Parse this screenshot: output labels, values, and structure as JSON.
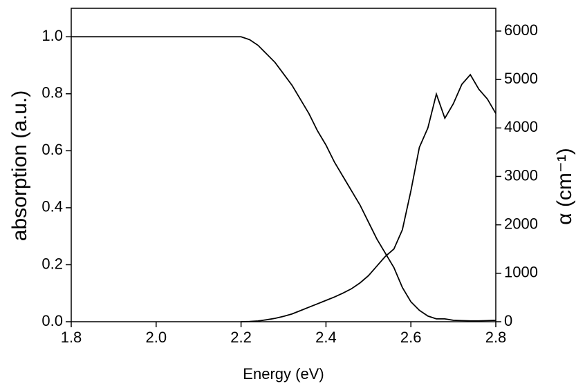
{
  "chart_data": {
    "type": "line",
    "x_label": "Energy (eV)",
    "y_label": "absorption (a.u.)",
    "y2_label": "α (cm⁻¹)",
    "xlim": [
      1.8,
      2.8
    ],
    "xticks": [
      1.8,
      {
        "value": 2,
        "label": "2.0"
      },
      2.2,
      2.4,
      2.6,
      2.8
    ],
    "ylim": [
      0,
      1.1
    ],
    "yticks": [
      {
        "value": 0,
        "label": "0.0"
      },
      0.2,
      0.4,
      0.6,
      0.8,
      {
        "value": 1,
        "label": "1.0"
      }
    ],
    "y2lim": [
      0,
      6470
    ],
    "y2ticks": [
      0,
      1000,
      2000,
      3000,
      4000,
      5000,
      6000
    ],
    "grid": false,
    "series": [
      {
        "color": "#000000",
        "x": [
          1.8,
          2.2,
          2.22,
          2.24,
          2.26,
          2.28,
          2.3,
          2.32,
          2.34,
          2.36,
          2.38,
          2.4,
          2.42,
          2.44,
          2.46,
          2.48,
          2.5,
          2.52,
          2.54,
          2.56,
          2.58,
          2.6,
          2.62,
          2.64,
          2.66,
          2.68,
          2.7,
          2.72,
          2.74,
          2.76,
          2.78,
          2.8
        ],
        "values": [
          1.0,
          1.0,
          0.99,
          0.97,
          0.94,
          0.91,
          0.87,
          0.83,
          0.78,
          0.73,
          0.67,
          0.62,
          0.56,
          0.51,
          0.46,
          0.41,
          0.35,
          0.29,
          0.24,
          0.19,
          0.12,
          0.07,
          0.04,
          0.02,
          0.01,
          0.01,
          0.005,
          0.004,
          0.003,
          0.003,
          0.004,
          0.005
        ]
      },
      {
        "color": "#000000",
        "axis": "y2",
        "x": [
          1.8,
          2.2,
          2.22,
          2.24,
          2.26,
          2.28,
          2.3,
          2.32,
          2.34,
          2.36,
          2.38,
          2.4,
          2.42,
          2.44,
          2.46,
          2.48,
          2.5,
          2.52,
          2.54,
          2.56,
          2.58,
          2.6,
          2.62,
          2.64,
          2.66,
          2.68,
          2.7,
          2.72,
          2.74,
          2.76,
          2.78,
          2.8
        ],
        "values": [
          null,
          0,
          5,
          15,
          40,
          70,
          110,
          160,
          230,
          300,
          370,
          440,
          510,
          590,
          680,
          800,
          950,
          1150,
          1350,
          1500,
          1900,
          2700,
          3600,
          4000,
          4700,
          4200,
          4500,
          4900,
          5100,
          4800,
          4600,
          4300
        ]
      }
    ]
  }
}
